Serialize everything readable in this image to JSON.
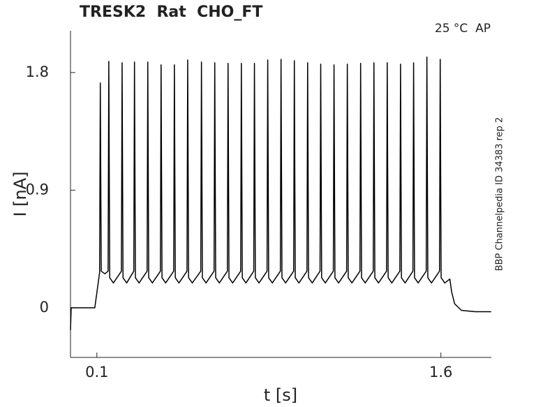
{
  "chart_data": {
    "type": "line",
    "title": "TRESK2  Rat  CHO_FT",
    "annotation": "25 °C  AP",
    "side_label": "BBP Channelpedia ID 34383 rep 2",
    "x_label": "t [s]",
    "y_label": "I [nA]",
    "xlim": [
      -0.015,
      1.82
    ],
    "ylim": [
      -0.38,
      2.12
    ],
    "xticks": [
      0.1,
      1.6
    ],
    "yticks": [
      0,
      0.9,
      1.8
    ],
    "grid": false,
    "x": [
      -0.015,
      -0.012,
      0.0,
      0.091,
      0.112,
      0.115,
      0.119,
      0.135,
      0.149,
      0.152,
      0.156,
      0.172,
      0.207,
      0.21,
      0.214,
      0.23,
      0.261,
      0.264,
      0.268,
      0.284,
      0.319,
      0.322,
      0.326,
      0.342,
      0.377,
      0.38,
      0.384,
      0.4,
      0.435,
      0.438,
      0.442,
      0.458,
      0.493,
      0.496,
      0.5,
      0.516,
      0.553,
      0.556,
      0.56,
      0.576,
      0.611,
      0.614,
      0.618,
      0.634,
      0.669,
      0.672,
      0.676,
      0.692,
      0.727,
      0.73,
      0.734,
      0.75,
      0.784,
      0.787,
      0.791,
      0.807,
      0.842,
      0.845,
      0.849,
      0.865,
      0.9,
      0.903,
      0.907,
      0.923,
      0.958,
      0.961,
      0.965,
      0.981,
      1.016,
      1.019,
      1.023,
      1.039,
      1.073,
      1.076,
      1.08,
      1.096,
      1.131,
      1.134,
      1.138,
      1.154,
      1.189,
      1.192,
      1.196,
      1.212,
      1.247,
      1.25,
      1.254,
      1.27,
      1.305,
      1.308,
      1.312,
      1.328,
      1.363,
      1.366,
      1.37,
      1.386,
      1.421,
      1.424,
      1.428,
      1.444,
      1.478,
      1.481,
      1.485,
      1.501,
      1.536,
      1.539,
      1.543,
      1.559,
      1.594,
      1.597,
      1.601,
      1.617,
      1.639,
      1.647,
      1.66,
      1.69,
      1.75,
      1.819
    ],
    "series": [
      {
        "color": "#000000",
        "values": [
          -0.17,
          0.0,
          0.0,
          0.0,
          0.27,
          1.72,
          0.28,
          0.26,
          0.28,
          1.885,
          0.23,
          0.19,
          0.28,
          1.875,
          0.23,
          0.19,
          0.28,
          1.88,
          0.23,
          0.19,
          0.28,
          1.88,
          0.23,
          0.19,
          0.28,
          1.859,
          0.23,
          0.19,
          0.28,
          1.859,
          0.23,
          0.19,
          0.28,
          1.896,
          0.23,
          0.19,
          0.28,
          1.88,
          0.23,
          0.19,
          0.28,
          1.875,
          0.23,
          0.19,
          0.28,
          1.87,
          0.23,
          0.19,
          0.28,
          1.87,
          0.23,
          0.19,
          0.28,
          1.87,
          0.23,
          0.19,
          0.28,
          1.896,
          0.23,
          0.19,
          0.28,
          1.901,
          0.23,
          0.19,
          0.28,
          1.891,
          0.23,
          0.19,
          0.28,
          1.875,
          0.23,
          0.19,
          0.28,
          1.864,
          0.23,
          0.19,
          0.28,
          1.859,
          0.23,
          0.19,
          0.28,
          1.864,
          0.23,
          0.19,
          0.28,
          1.87,
          0.23,
          0.19,
          0.28,
          1.875,
          0.23,
          0.19,
          0.28,
          1.875,
          0.23,
          0.19,
          0.28,
          1.864,
          0.23,
          0.19,
          0.28,
          1.875,
          0.23,
          0.19,
          0.28,
          1.918,
          0.23,
          0.19,
          0.28,
          1.901,
          0.23,
          0.19,
          0.22,
          0.12,
          0.03,
          -0.02,
          -0.03,
          -0.03
        ]
      }
    ]
  }
}
